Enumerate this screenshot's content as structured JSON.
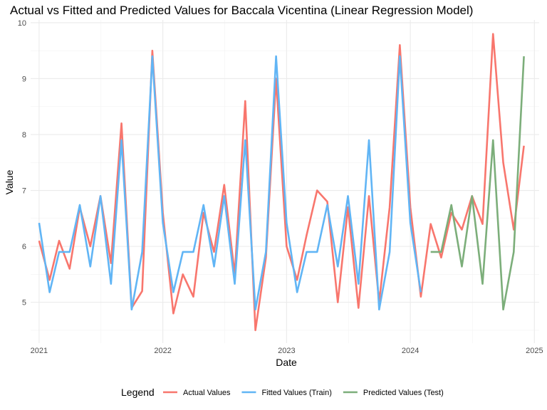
{
  "chart_data": {
    "type": "line",
    "title": "Actual vs Fitted and Predicted Values for Baccala Vicentina (Linear Regression Model)",
    "xlabel": "Date",
    "ylabel": "Value",
    "xlim": [
      "2020-12-07",
      "2025-01-15"
    ],
    "ylim": [
      4.27,
      10.05
    ],
    "x_ticks": [
      {
        "date": "2021-01-01",
        "label": "2021"
      },
      {
        "date": "2022-01-01",
        "label": "2022"
      },
      {
        "date": "2023-01-01",
        "label": "2023"
      },
      {
        "date": "2024-01-01",
        "label": "2024"
      },
      {
        "date": "2025-01-01",
        "label": "2025"
      }
    ],
    "y_ticks": [
      5,
      6,
      7,
      8,
      9,
      10
    ],
    "grid": true,
    "legend": {
      "title": "Legend",
      "position": "bottom"
    },
    "series": [
      {
        "name": "Actual Values",
        "color": "#F8766D",
        "x": [
          "2021-01-01",
          "2021-02-01",
          "2021-03-01",
          "2021-04-01",
          "2021-05-01",
          "2021-06-01",
          "2021-07-01",
          "2021-08-01",
          "2021-09-01",
          "2021-10-01",
          "2021-11-01",
          "2021-12-01",
          "2022-01-01",
          "2022-02-01",
          "2022-03-01",
          "2022-04-01",
          "2022-05-01",
          "2022-06-01",
          "2022-07-01",
          "2022-08-01",
          "2022-09-01",
          "2022-10-01",
          "2022-11-01",
          "2022-12-01",
          "2023-01-01",
          "2023-02-01",
          "2023-03-01",
          "2023-04-01",
          "2023-05-01",
          "2023-06-01",
          "2023-07-01",
          "2023-08-01",
          "2023-09-01",
          "2023-10-01",
          "2023-11-01",
          "2023-12-01",
          "2024-01-01",
          "2024-02-01",
          "2024-03-01",
          "2024-04-01",
          "2024-05-01",
          "2024-06-01",
          "2024-07-01",
          "2024-08-01",
          "2024-09-01",
          "2024-10-01",
          "2024-11-01",
          "2024-12-01"
        ],
        "values": [
          6.1,
          5.4,
          6.1,
          5.6,
          6.7,
          6.0,
          6.9,
          5.7,
          8.2,
          4.9,
          5.2,
          9.5,
          6.6,
          4.8,
          5.5,
          5.1,
          6.6,
          5.9,
          7.1,
          5.5,
          8.6,
          4.5,
          5.8,
          9.0,
          6.0,
          5.4,
          6.2,
          7.0,
          6.8,
          5.0,
          6.7,
          4.9,
          6.9,
          5.0,
          6.7,
          9.6,
          6.7,
          5.1,
          6.4,
          5.8,
          6.6,
          6.3,
          6.9,
          6.4,
          9.8,
          7.5,
          6.3,
          7.8
        ]
      },
      {
        "name": "Fitted Values (Train)",
        "color": "#61B5F5",
        "x": [
          "2021-01-01",
          "2021-02-01",
          "2021-03-01",
          "2021-04-01",
          "2021-05-01",
          "2021-06-01",
          "2021-07-01",
          "2021-08-01",
          "2021-09-01",
          "2021-10-01",
          "2021-11-01",
          "2021-12-01",
          "2022-01-01",
          "2022-02-01",
          "2022-03-01",
          "2022-04-01",
          "2022-05-01",
          "2022-06-01",
          "2022-07-01",
          "2022-08-01",
          "2022-09-01",
          "2022-10-01",
          "2022-11-01",
          "2022-12-01",
          "2023-01-01",
          "2023-02-01",
          "2023-03-01",
          "2023-04-01",
          "2023-05-01",
          "2023-06-01",
          "2023-07-01",
          "2023-08-01",
          "2023-09-01",
          "2023-10-01",
          "2023-11-01",
          "2023-12-01",
          "2024-01-01",
          "2024-02-01"
        ],
        "values": [
          6.42,
          5.18,
          5.9,
          5.9,
          6.74,
          5.64,
          6.9,
          5.33,
          7.9,
          4.87,
          5.9,
          9.4,
          6.42,
          5.18,
          5.9,
          5.9,
          6.74,
          5.64,
          6.9,
          5.33,
          7.9,
          4.87,
          5.9,
          9.4,
          6.42,
          5.18,
          5.9,
          5.9,
          6.74,
          5.64,
          6.9,
          5.33,
          7.9,
          4.87,
          5.9,
          9.4,
          6.42,
          5.18
        ]
      },
      {
        "name": "Predicted Values (Test)",
        "color": "#7CAE7A",
        "x": [
          "2024-03-01",
          "2024-04-01",
          "2024-05-01",
          "2024-06-01",
          "2024-07-01",
          "2024-08-01",
          "2024-09-01",
          "2024-10-01",
          "2024-11-01",
          "2024-12-01"
        ],
        "values": [
          5.9,
          5.9,
          6.74,
          5.64,
          6.9,
          5.33,
          7.9,
          4.87,
          5.9,
          9.4
        ]
      }
    ]
  }
}
